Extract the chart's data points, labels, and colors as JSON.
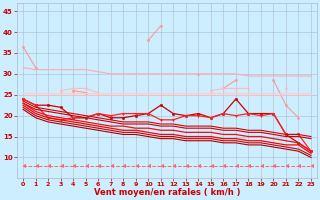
{
  "x": [
    0,
    1,
    2,
    3,
    4,
    5,
    6,
    7,
    8,
    9,
    10,
    11,
    12,
    13,
    14,
    15,
    16,
    17,
    18,
    19,
    20,
    21,
    22,
    23
  ],
  "series": [
    {
      "color": "#ff9999",
      "lw": 0.8,
      "marker": "D",
      "ms": 1.5,
      "linestyle": "solid",
      "values": [
        36.5,
        31.5,
        null,
        null,
        26.0,
        25.5,
        null,
        null,
        null,
        null,
        38.0,
        41.5,
        null,
        null,
        30.0,
        null,
        26.5,
        28.5,
        null,
        null,
        28.5,
        22.5,
        19.5,
        null
      ]
    },
    {
      "color": "#ffaaaa",
      "lw": 0.8,
      "marker": null,
      "ms": 0,
      "linestyle": "solid",
      "values": [
        31.5,
        31.0,
        31.0,
        31.0,
        31.0,
        31.0,
        30.5,
        30.0,
        30.0,
        30.0,
        30.0,
        30.0,
        30.0,
        30.0,
        30.0,
        30.0,
        30.0,
        30.0,
        29.5,
        29.5,
        29.5,
        29.5,
        29.5,
        29.5
      ]
    },
    {
      "color": "#ffbbbb",
      "lw": 0.8,
      "marker": "D",
      "ms": 1.5,
      "linestyle": "solid",
      "values": [
        null,
        null,
        null,
        26.0,
        26.5,
        26.5,
        25.5,
        null,
        null,
        null,
        null,
        null,
        null,
        null,
        null,
        26.0,
        26.5,
        26.5,
        26.5,
        null,
        null,
        26.5,
        null,
        null
      ]
    },
    {
      "color": "#ffcccc",
      "lw": 0.8,
      "marker": null,
      "ms": 0,
      "linestyle": "solid",
      "values": [
        25.5,
        25.5,
        25.5,
        25.5,
        25.5,
        25.5,
        25.5,
        25.5,
        25.5,
        25.5,
        25.5,
        25.5,
        25.5,
        25.5,
        25.5,
        25.5,
        25.5,
        25.5,
        25.5,
        25.5,
        25.5,
        25.5,
        25.5,
        25.5
      ]
    },
    {
      "color": "#ffbbbb",
      "lw": 0.8,
      "marker": null,
      "ms": 0,
      "linestyle": "solid",
      "values": [
        25.0,
        25.0,
        25.0,
        25.0,
        25.0,
        25.0,
        25.0,
        25.0,
        25.0,
        25.0,
        25.0,
        25.0,
        25.0,
        25.0,
        25.0,
        25.0,
        25.0,
        25.0,
        25.0,
        25.0,
        25.0,
        25.0,
        25.0,
        25.0
      ]
    },
    {
      "color": "#cc0000",
      "lw": 0.9,
      "marker": "o",
      "ms": 1.8,
      "linestyle": "solid",
      "values": [
        24.0,
        22.5,
        22.5,
        22.0,
        19.5,
        19.5,
        20.5,
        19.5,
        19.5,
        20.0,
        20.5,
        22.5,
        20.5,
        20.0,
        20.5,
        19.5,
        20.5,
        24.0,
        20.5,
        20.5,
        20.5,
        15.5,
        13.5,
        11.5
      ]
    },
    {
      "color": "#ff2222",
      "lw": 0.9,
      "marker": "v",
      "ms": 1.8,
      "linestyle": "solid",
      "values": [
        24.0,
        22.5,
        19.5,
        19.0,
        19.5,
        19.5,
        20.5,
        20.0,
        20.5,
        20.5,
        20.5,
        19.0,
        19.0,
        20.0,
        20.0,
        19.5,
        20.5,
        20.0,
        20.5,
        20.0,
        20.5,
        15.5,
        15.5,
        11.5
      ]
    },
    {
      "color": "#dd0000",
      "lw": 0.8,
      "marker": null,
      "ms": 0,
      "linestyle": "solid",
      "values": [
        23.5,
        22.0,
        21.5,
        21.0,
        20.5,
        20.0,
        19.5,
        19.0,
        18.5,
        18.5,
        18.5,
        18.0,
        18.0,
        17.5,
        17.5,
        17.5,
        17.0,
        17.0,
        16.5,
        16.5,
        16.0,
        15.5,
        15.5,
        15.0
      ]
    },
    {
      "color": "#cc0000",
      "lw": 0.8,
      "marker": null,
      "ms": 0,
      "linestyle": "solid",
      "values": [
        23.0,
        21.5,
        21.0,
        20.5,
        20.0,
        19.5,
        19.0,
        18.5,
        18.0,
        18.0,
        18.0,
        17.5,
        17.5,
        17.0,
        17.0,
        17.0,
        16.5,
        16.5,
        16.0,
        16.0,
        15.5,
        15.0,
        15.0,
        14.5
      ]
    },
    {
      "color": "#ee1111",
      "lw": 0.9,
      "marker": null,
      "ms": 0,
      "linestyle": "solid",
      "values": [
        23.0,
        21.0,
        20.0,
        19.5,
        19.0,
        18.5,
        18.0,
        17.5,
        17.5,
        17.0,
        17.0,
        16.5,
        16.5,
        16.0,
        16.0,
        16.0,
        15.5,
        15.5,
        15.0,
        15.0,
        14.5,
        14.0,
        13.5,
        11.5
      ]
    },
    {
      "color": "#ff0000",
      "lw": 0.9,
      "marker": null,
      "ms": 0,
      "linestyle": "solid",
      "values": [
        22.5,
        20.5,
        19.5,
        19.0,
        18.5,
        18.0,
        17.5,
        17.0,
        16.5,
        16.5,
        16.0,
        15.5,
        15.5,
        15.0,
        15.0,
        15.0,
        14.5,
        14.5,
        14.0,
        14.0,
        13.5,
        13.0,
        13.0,
        11.0
      ]
    },
    {
      "color": "#cc0000",
      "lw": 0.8,
      "marker": null,
      "ms": 0,
      "linestyle": "solid",
      "values": [
        22.0,
        20.0,
        19.0,
        18.5,
        18.0,
        17.5,
        17.0,
        16.5,
        16.0,
        16.0,
        15.5,
        15.0,
        15.0,
        14.5,
        14.5,
        14.5,
        14.0,
        14.0,
        13.5,
        13.5,
        13.0,
        12.5,
        12.0,
        10.5
      ]
    },
    {
      "color": "#aa0000",
      "lw": 0.8,
      "marker": null,
      "ms": 0,
      "linestyle": "solid",
      "values": [
        21.5,
        19.5,
        18.5,
        18.0,
        17.5,
        17.0,
        16.5,
        16.0,
        15.5,
        15.5,
        15.0,
        14.5,
        14.5,
        14.0,
        14.0,
        14.0,
        13.5,
        13.5,
        13.0,
        13.0,
        12.5,
        12.0,
        11.5,
        10.0
      ]
    },
    {
      "color": "#ff6666",
      "lw": 0.7,
      "marker": 4,
      "ms": 2.5,
      "linestyle": "dashed",
      "values": [
        8.0,
        8.0,
        8.0,
        8.0,
        8.0,
        8.0,
        8.0,
        8.0,
        8.0,
        8.0,
        8.0,
        8.0,
        8.0,
        8.0,
        8.0,
        8.0,
        8.0,
        8.0,
        8.0,
        8.0,
        8.0,
        8.0,
        8.0,
        8.0
      ]
    }
  ],
  "xlim": [
    -0.5,
    23.5
  ],
  "ylim": [
    5,
    47
  ],
  "yticks": [
    10,
    15,
    20,
    25,
    30,
    35,
    40,
    45
  ],
  "xticks": [
    0,
    1,
    2,
    3,
    4,
    5,
    6,
    7,
    8,
    9,
    10,
    11,
    12,
    13,
    14,
    15,
    16,
    17,
    18,
    19,
    20,
    21,
    22,
    23
  ],
  "xlabel": "Vent moyen/en rafales ( km/h )",
  "bg_color": "#cceeff",
  "grid_color": "#aabbcc",
  "tick_color": "#cc0000",
  "label_color": "#cc0000"
}
